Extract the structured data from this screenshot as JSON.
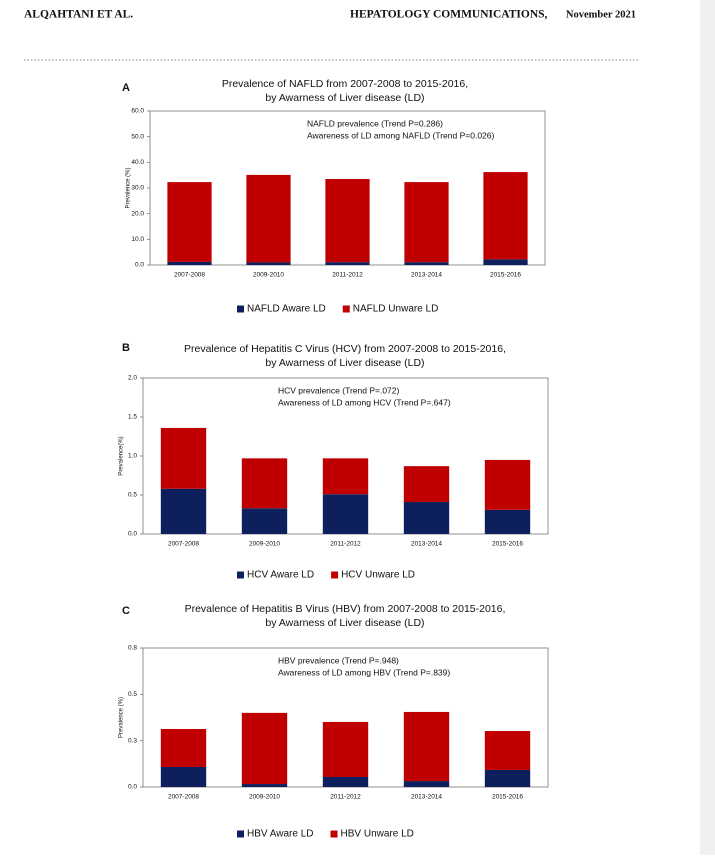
{
  "header": {
    "author": "ALQAHTANI ET AL.",
    "journal": "HEPATOLOGY COMMUNICATIONS,",
    "date": "November 2021"
  },
  "chart_data": [
    {
      "type": "bar",
      "stacked": true,
      "panel": "A",
      "title": [
        "Prevalence of NAFLD from 2007-2008 to 2015-2016,",
        "by Awarness of Liver disease (LD)"
      ],
      "annotations": [
        "NAFLD prevalence (Trend P=0.286)",
        "Awareness of LD among NAFLD (Trend P=0.026)"
      ],
      "ylabel": "Prevalence (%)",
      "categories": [
        "2007-2008",
        "2009-2010",
        "2011-2012",
        "2013-2014",
        "2015-2016"
      ],
      "series": [
        {
          "name": "NAFLD Aware LD",
          "color": "#0d1f5c",
          "values": [
            1.2,
            1.0,
            1.1,
            1.1,
            2.2
          ]
        },
        {
          "name": "NAFLD Unware LD",
          "color": "#c00000",
          "values": [
            31.1,
            34.1,
            32.4,
            31.2,
            34.0
          ]
        }
      ],
      "ylim": [
        0,
        60
      ],
      "yticks": [
        {
          "value": 0,
          "label": "0.0"
        },
        {
          "value": 10,
          "label": "10.0"
        },
        {
          "value": 20,
          "label": "20.0"
        },
        {
          "value": 30,
          "label": "30.0"
        },
        {
          "value": 40,
          "label": "40.0"
        },
        {
          "value": 50,
          "label": "50.0"
        },
        {
          "value": 60,
          "label": "60.0"
        }
      ]
    },
    {
      "type": "bar",
      "stacked": true,
      "panel": "B",
      "title": [
        "Prevalence of Hepatitis C Virus (HCV) from 2007-2008 to 2015-2016,",
        "by Awarness of Liver disease (LD)"
      ],
      "annotations": [
        "HCV prevalence (Trend P=.072)",
        "Awareness of LD among HCV (Trend P=.647)"
      ],
      "ylabel": "Prevalence(%)",
      "categories": [
        "2007-2008",
        "2009-2010",
        "2011-2012",
        "2013-2014",
        "2015-2016"
      ],
      "series": [
        {
          "name": "HCV Aware LD",
          "color": "#0d1f5c",
          "values": [
            0.58,
            0.33,
            0.51,
            0.41,
            0.31
          ]
        },
        {
          "name": "HCV Unware LD",
          "color": "#c00000",
          "values": [
            0.78,
            0.64,
            0.46,
            0.46,
            0.64
          ]
        }
      ],
      "ylim": [
        0,
        2
      ],
      "yticks": [
        {
          "value": 0,
          "label": "0.0"
        },
        {
          "value": 0.5,
          "label": "0.5"
        },
        {
          "value": 1,
          "label": "1.0"
        },
        {
          "value": 1.5,
          "label": "1.5"
        },
        {
          "value": 2,
          "label": "2.0"
        }
      ]
    },
    {
      "type": "bar",
      "stacked": true,
      "panel": "C",
      "title": [
        "Prevalence of Hepatitis B Virus (HBV) from 2007-2008 to 2015-2016,",
        "by Awarness of Liver disease (LD)"
      ],
      "annotations": [
        "HBV prevalence (Trend P=.948)",
        "Awareness of LD among HBV (Trend P=.839)"
      ],
      "ylabel": "Prevalence (%)",
      "categories": [
        "2007-2008",
        "2009-2010",
        "2011-2012",
        "2013-2014",
        "2015-2016"
      ],
      "series": [
        {
          "name": "HBV Aware LD",
          "color": "#0d1f5c",
          "values": [
            0.108,
            0.016,
            0.054,
            0.032,
            0.092
          ]
        },
        {
          "name": "HBV Unware LD",
          "color": "#c00000",
          "values": [
            0.205,
            0.384,
            0.297,
            0.373,
            0.21
          ]
        }
      ],
      "ylim": [
        0,
        0.75
      ],
      "yticks": [
        {
          "value": 0,
          "label": "0.0"
        },
        {
          "value": 0.25,
          "label": "0.3"
        },
        {
          "value": 0.5,
          "label": "0.5"
        },
        {
          "value": 0.75,
          "label": "0.8"
        }
      ]
    }
  ]
}
